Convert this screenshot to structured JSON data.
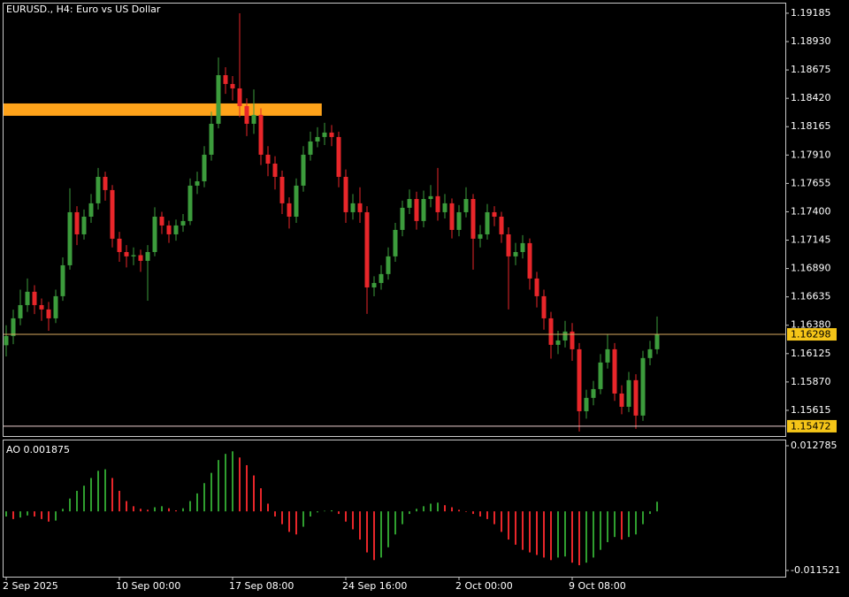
{
  "chart_data": [
    {
      "type": "candlestick",
      "title": "EURUSD., H4:  Euro vs US Dollar",
      "up_color": "#3c9c3c",
      "down_color": "#e8262a",
      "categories": [
        "2 Sep 2025",
        null,
        null,
        null,
        null,
        null,
        null,
        null,
        null,
        null,
        null,
        null,
        null,
        null,
        null,
        null,
        "10 Sep 00:00",
        null,
        null,
        null,
        null,
        null,
        null,
        null,
        null,
        null,
        null,
        null,
        null,
        null,
        null,
        null,
        "17 Sep 08:00",
        null,
        null,
        null,
        null,
        null,
        null,
        null,
        null,
        null,
        null,
        null,
        null,
        null,
        null,
        null,
        "24 Sep 16:00",
        null,
        null,
        null,
        null,
        null,
        null,
        null,
        null,
        null,
        null,
        null,
        null,
        null,
        null,
        null,
        "2 Oct 00:00",
        null,
        null,
        null,
        null,
        null,
        null,
        null,
        null,
        null,
        null,
        null,
        null,
        null,
        null,
        null,
        "9 Oct 08:00",
        null,
        null,
        null,
        null,
        null,
        null,
        null,
        null,
        null,
        null,
        null,
        null
      ],
      "open": [
        1.162,
        1.16283,
        1.16442,
        1.16561,
        1.16681,
        1.16561,
        1.16522,
        1.16442,
        1.16641,
        1.16919,
        1.17396,
        1.17197,
        1.17356,
        1.17476,
        1.17714,
        1.17595,
        1.17158,
        1.17038,
        1.16999,
        1.1701,
        1.16959,
        1.17038,
        1.17356,
        1.17277,
        1.17197,
        1.17277,
        1.17317,
        1.17635,
        1.17674,
        1.17913,
        1.18191,
        1.18628,
        1.18549,
        1.18509,
        1.1835,
        1.18191,
        1.18271,
        1.17913,
        1.17833,
        1.17714,
        1.17476,
        1.17356,
        1.17635,
        1.17913,
        1.18032,
        1.18072,
        1.18112,
        1.18072,
        1.17714,
        1.17396,
        1.17476,
        1.17396,
        1.1672,
        1.1676,
        1.1684,
        1.16999,
        1.17237,
        1.17436,
        1.17515,
        1.17317,
        1.17515,
        1.1754,
        1.17396,
        1.17476,
        1.17237,
        1.17396,
        1.17515,
        1.17158,
        1.17197,
        1.17396,
        1.17356,
        1.17197,
        1.16999,
        1.17038,
        1.17118,
        1.168,
        1.16641,
        1.16442,
        1.16204,
        1.16243,
        1.16323,
        1.16164,
        1.15607,
        1.15727,
        1.15806,
        1.16045,
        1.16164,
        1.15766,
        1.15647,
        1.15886,
        1.15568,
        1.16085,
        1.16164
      ],
      "high": [
        1.1638,
        1.1652,
        1.167,
        1.168,
        1.1674,
        1.1662,
        1.1659,
        1.167,
        1.1699,
        1.17611,
        1.1745,
        1.1742,
        1.1756,
        1.17794,
        1.1776,
        1.1764,
        1.1722,
        1.171,
        1.1708,
        1.1706,
        1.171,
        1.1744,
        1.174,
        1.1732,
        1.1733,
        1.1738,
        1.177,
        1.1776,
        1.1799,
        1.183,
        1.18787,
        1.187,
        1.1862,
        1.19185,
        1.1842,
        1.185,
        1.1833,
        1.1799,
        1.179,
        1.1777,
        1.1753,
        1.177,
        1.1799,
        1.1812,
        1.1816,
        1.182,
        1.1818,
        1.1812,
        1.1778,
        1.1756,
        1.1762,
        1.1745,
        1.1682,
        1.1692,
        1.1708,
        1.173,
        1.175,
        1.176,
        1.1758,
        1.1759,
        1.1764,
        1.17794,
        1.1756,
        1.1752,
        1.1746,
        1.1762,
        1.1756,
        1.1728,
        1.1747,
        1.1745,
        1.174,
        1.1726,
        1.1712,
        1.1719,
        1.1716,
        1.1686,
        1.167,
        1.165,
        1.1633,
        1.1642,
        1.164,
        1.1622,
        1.158,
        1.1588,
        1.1612,
        1.163,
        1.1622,
        1.1584,
        1.1596,
        1.1594,
        1.1615,
        1.1624,
        1.16458
      ],
      "low": [
        1.161,
        1.1621,
        1.1638,
        1.165,
        1.1648,
        1.1642,
        1.1633,
        1.164,
        1.166,
        1.1688,
        1.171,
        1.1715,
        1.173,
        1.1742,
        1.175,
        1.1708,
        1.1695,
        1.169,
        1.1692,
        1.1686,
        1.16601,
        1.17,
        1.172,
        1.1712,
        1.1714,
        1.1722,
        1.1728,
        1.1756,
        1.1762,
        1.1786,
        1.1815,
        1.1846,
        1.184,
        1.1825,
        1.1808,
        1.181,
        1.1782,
        1.1772,
        1.176,
        1.1738,
        1.1725,
        1.173,
        1.1758,
        1.1786,
        1.1798,
        1.18,
        1.1799,
        1.1762,
        1.173,
        1.1733,
        1.173,
        1.16482,
        1.1664,
        1.167,
        1.1679,
        1.1695,
        1.1718,
        1.1738,
        1.1724,
        1.1726,
        1.1744,
        1.1732,
        1.1734,
        1.1716,
        1.1718,
        1.1735,
        1.1688,
        1.1708,
        1.1715,
        1.1727,
        1.1712,
        1.16522,
        1.1692,
        1.1698,
        1.167,
        1.1654,
        1.1634,
        1.1608,
        1.1612,
        1.1618,
        1.1606,
        1.15425,
        1.1554,
        1.1566,
        1.1576,
        1.1599,
        1.157,
        1.1558,
        1.156,
        1.15449,
        1.1552,
        1.1602,
        1.1612
      ],
      "close": [
        1.16283,
        1.16442,
        1.16561,
        1.16681,
        1.16561,
        1.16522,
        1.16442,
        1.16641,
        1.16919,
        1.17396,
        1.17197,
        1.17356,
        1.17476,
        1.17714,
        1.17595,
        1.17158,
        1.17038,
        1.16999,
        1.1701,
        1.16959,
        1.17038,
        1.17356,
        1.17277,
        1.17197,
        1.17277,
        1.17317,
        1.17635,
        1.17674,
        1.17913,
        1.18191,
        1.18628,
        1.18549,
        1.18509,
        1.1835,
        1.18191,
        1.18271,
        1.17913,
        1.17833,
        1.17714,
        1.17476,
        1.17356,
        1.17635,
        1.17913,
        1.18032,
        1.18072,
        1.18112,
        1.18072,
        1.17714,
        1.17396,
        1.17476,
        1.17396,
        1.1672,
        1.1676,
        1.1684,
        1.16999,
        1.17237,
        1.17436,
        1.17515,
        1.17317,
        1.17515,
        1.1754,
        1.17396,
        1.17476,
        1.17237,
        1.17396,
        1.17515,
        1.17158,
        1.17197,
        1.17396,
        1.17356,
        1.17197,
        1.16999,
        1.17038,
        1.17118,
        1.168,
        1.16641,
        1.16442,
        1.16204,
        1.16243,
        1.16323,
        1.16164,
        1.15607,
        1.15727,
        1.15806,
        1.16045,
        1.16164,
        1.15766,
        1.15647,
        1.15886,
        1.15568,
        1.16085,
        1.16164,
        1.16298
      ],
      "ylim": [
        1.15384,
        1.1928
      ],
      "yticks": [
        1.19185,
        {
          "value": 1.1893,
          "label": "1.18930"
        },
        1.18675,
        {
          "value": 1.1842,
          "label": "1.18420"
        },
        1.18165,
        {
          "value": 1.1791,
          "label": "1.17910"
        },
        1.17655,
        {
          "value": 1.174,
          "label": "1.17400"
        },
        1.17145,
        {
          "value": 1.1689,
          "label": "1.16890"
        },
        1.16635,
        {
          "value": 1.1638,
          "label": "1.16380"
        },
        1.16125,
        {
          "value": 1.1587,
          "label": "1.15870"
        },
        1.15615
      ],
      "price_lines": [
        {
          "value": 1.16298,
          "color": "#d8aa60"
        },
        {
          "value": 1.15472,
          "color": "#f0d0d0"
        }
      ],
      "rectangle": {
        "y_range": [
          1.18263,
          1.18374
        ],
        "start": 0,
        "end": 44.6,
        "color": "#ffa31a"
      }
    },
    {
      "type": "ao",
      "label": "AO 0.001875",
      "up_color": "#2f9e2f",
      "down_color": "#e8262a",
      "values": [
        -0.001,
        -0.0015,
        -0.0012,
        -0.0008,
        -0.001,
        -0.0015,
        -0.002,
        -0.0018,
        0.0005,
        0.0025,
        0.004,
        0.005,
        0.0065,
        0.0079,
        0.0082,
        0.0065,
        0.004,
        0.002,
        0.001,
        0.0005,
        0.0003,
        0.0008,
        0.001,
        0.0006,
        0.0002,
        0.0006,
        0.002,
        0.0035,
        0.0055,
        0.0075,
        0.01,
        0.0112,
        0.0117,
        0.0105,
        0.009,
        0.007,
        0.0045,
        0.0015,
        -0.001,
        -0.0025,
        -0.004,
        -0.0045,
        -0.003,
        -0.001,
        -0.0002,
        0.0001,
        0.0002,
        -0.0005,
        -0.002,
        -0.0035,
        -0.0055,
        -0.008,
        -0.0095,
        -0.009,
        -0.007,
        -0.0045,
        -0.0025,
        -0.0005,
        0.0005,
        0.001,
        0.0015,
        0.0017,
        0.0012,
        0.0008,
        0.0003,
        -0.0001,
        -0.0005,
        -0.001,
        -0.0015,
        -0.0025,
        -0.004,
        -0.0055,
        -0.0065,
        -0.0075,
        -0.008,
        -0.0085,
        -0.009,
        -0.0095,
        -0.009,
        -0.0088,
        -0.01,
        -0.0105,
        -0.01,
        -0.009,
        -0.0075,
        -0.006,
        -0.005,
        -0.0055,
        -0.005,
        -0.0045,
        -0.0025,
        -0.0005,
        0.001875
      ],
      "ylim": [
        -0.012728,
        0.013992
      ],
      "yticks": [
        0.012785,
        -0.011521
      ]
    }
  ]
}
